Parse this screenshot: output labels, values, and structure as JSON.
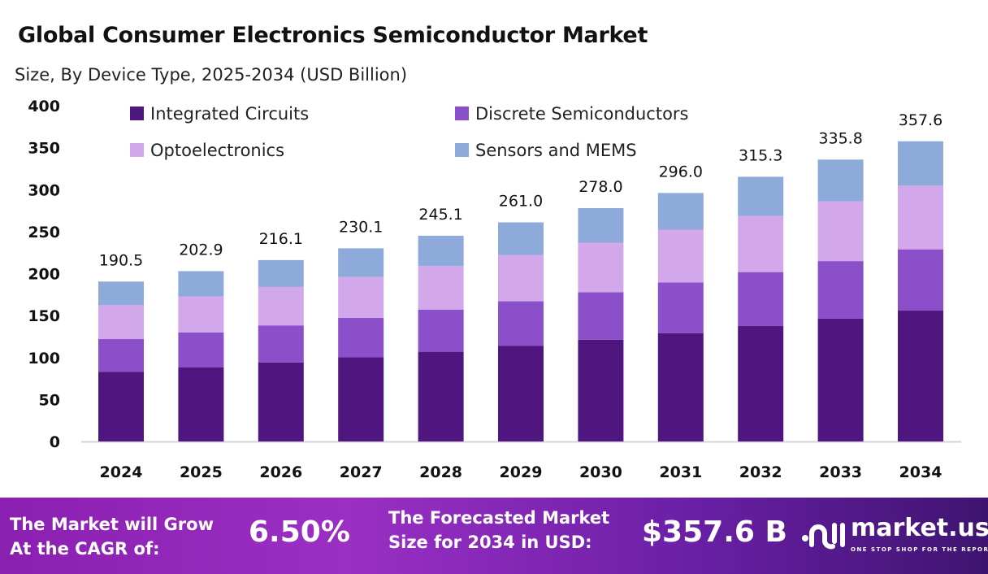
{
  "title": "Global Consumer Electronics Semiconductor Market",
  "subtitle": "Size, By Device Type, 2025-2034 (USD Billion)",
  "chart_data": {
    "type": "bar",
    "stacked": true,
    "categories": [
      "2024",
      "2025",
      "2026",
      "2027",
      "2028",
      "2029",
      "2030",
      "2031",
      "2032",
      "2033",
      "2034"
    ],
    "series": [
      {
        "name": "Integrated Circuits",
        "color": "#4f1680",
        "values": [
          83.1,
          88.5,
          94.2,
          100.3,
          106.9,
          113.8,
          121.2,
          129.1,
          137.5,
          146.4,
          155.9
        ]
      },
      {
        "name": "Discrete Semiconductors",
        "color": "#8c4fca",
        "values": [
          38.9,
          41.4,
          44.1,
          46.9,
          50.0,
          53.2,
          56.7,
          60.4,
          64.3,
          68.5,
          73.0
        ]
      },
      {
        "name": "Optoelectronics",
        "color": "#d3a8ea",
        "values": [
          40.4,
          43.0,
          45.8,
          48.8,
          52.0,
          55.3,
          58.9,
          62.8,
          66.8,
          71.2,
          75.8
        ]
      },
      {
        "name": "Sensors and MEMS",
        "color": "#8eaadb",
        "values": [
          28.1,
          30.0,
          32.0,
          34.1,
          36.2,
          38.7,
          41.2,
          43.7,
          46.7,
          49.7,
          52.9
        ]
      }
    ],
    "totals": [
      "190.5",
      "202.9",
      "216.1",
      "230.1",
      "245.1",
      "261.0",
      "278.0",
      "296.0",
      "315.3",
      "335.8",
      "357.6"
    ],
    "yticks": [
      "0",
      "50",
      "100",
      "150",
      "200",
      "250",
      "300",
      "350",
      "400"
    ],
    "ylim": [
      0,
      400
    ],
    "grid": false,
    "legend": "top"
  },
  "footer": {
    "cagr_label_line1": "The Market will Grow",
    "cagr_label_line2": "At the CAGR of:",
    "cagr_value": "6.50%",
    "forecast_label_line1": "The Forecasted Market",
    "forecast_label_line2": "Size for 2034 in USD:",
    "forecast_value": "$357.6 B",
    "logo_name": "market.us",
    "logo_tagline": "ONE STOP SHOP FOR THE REPORTS"
  }
}
